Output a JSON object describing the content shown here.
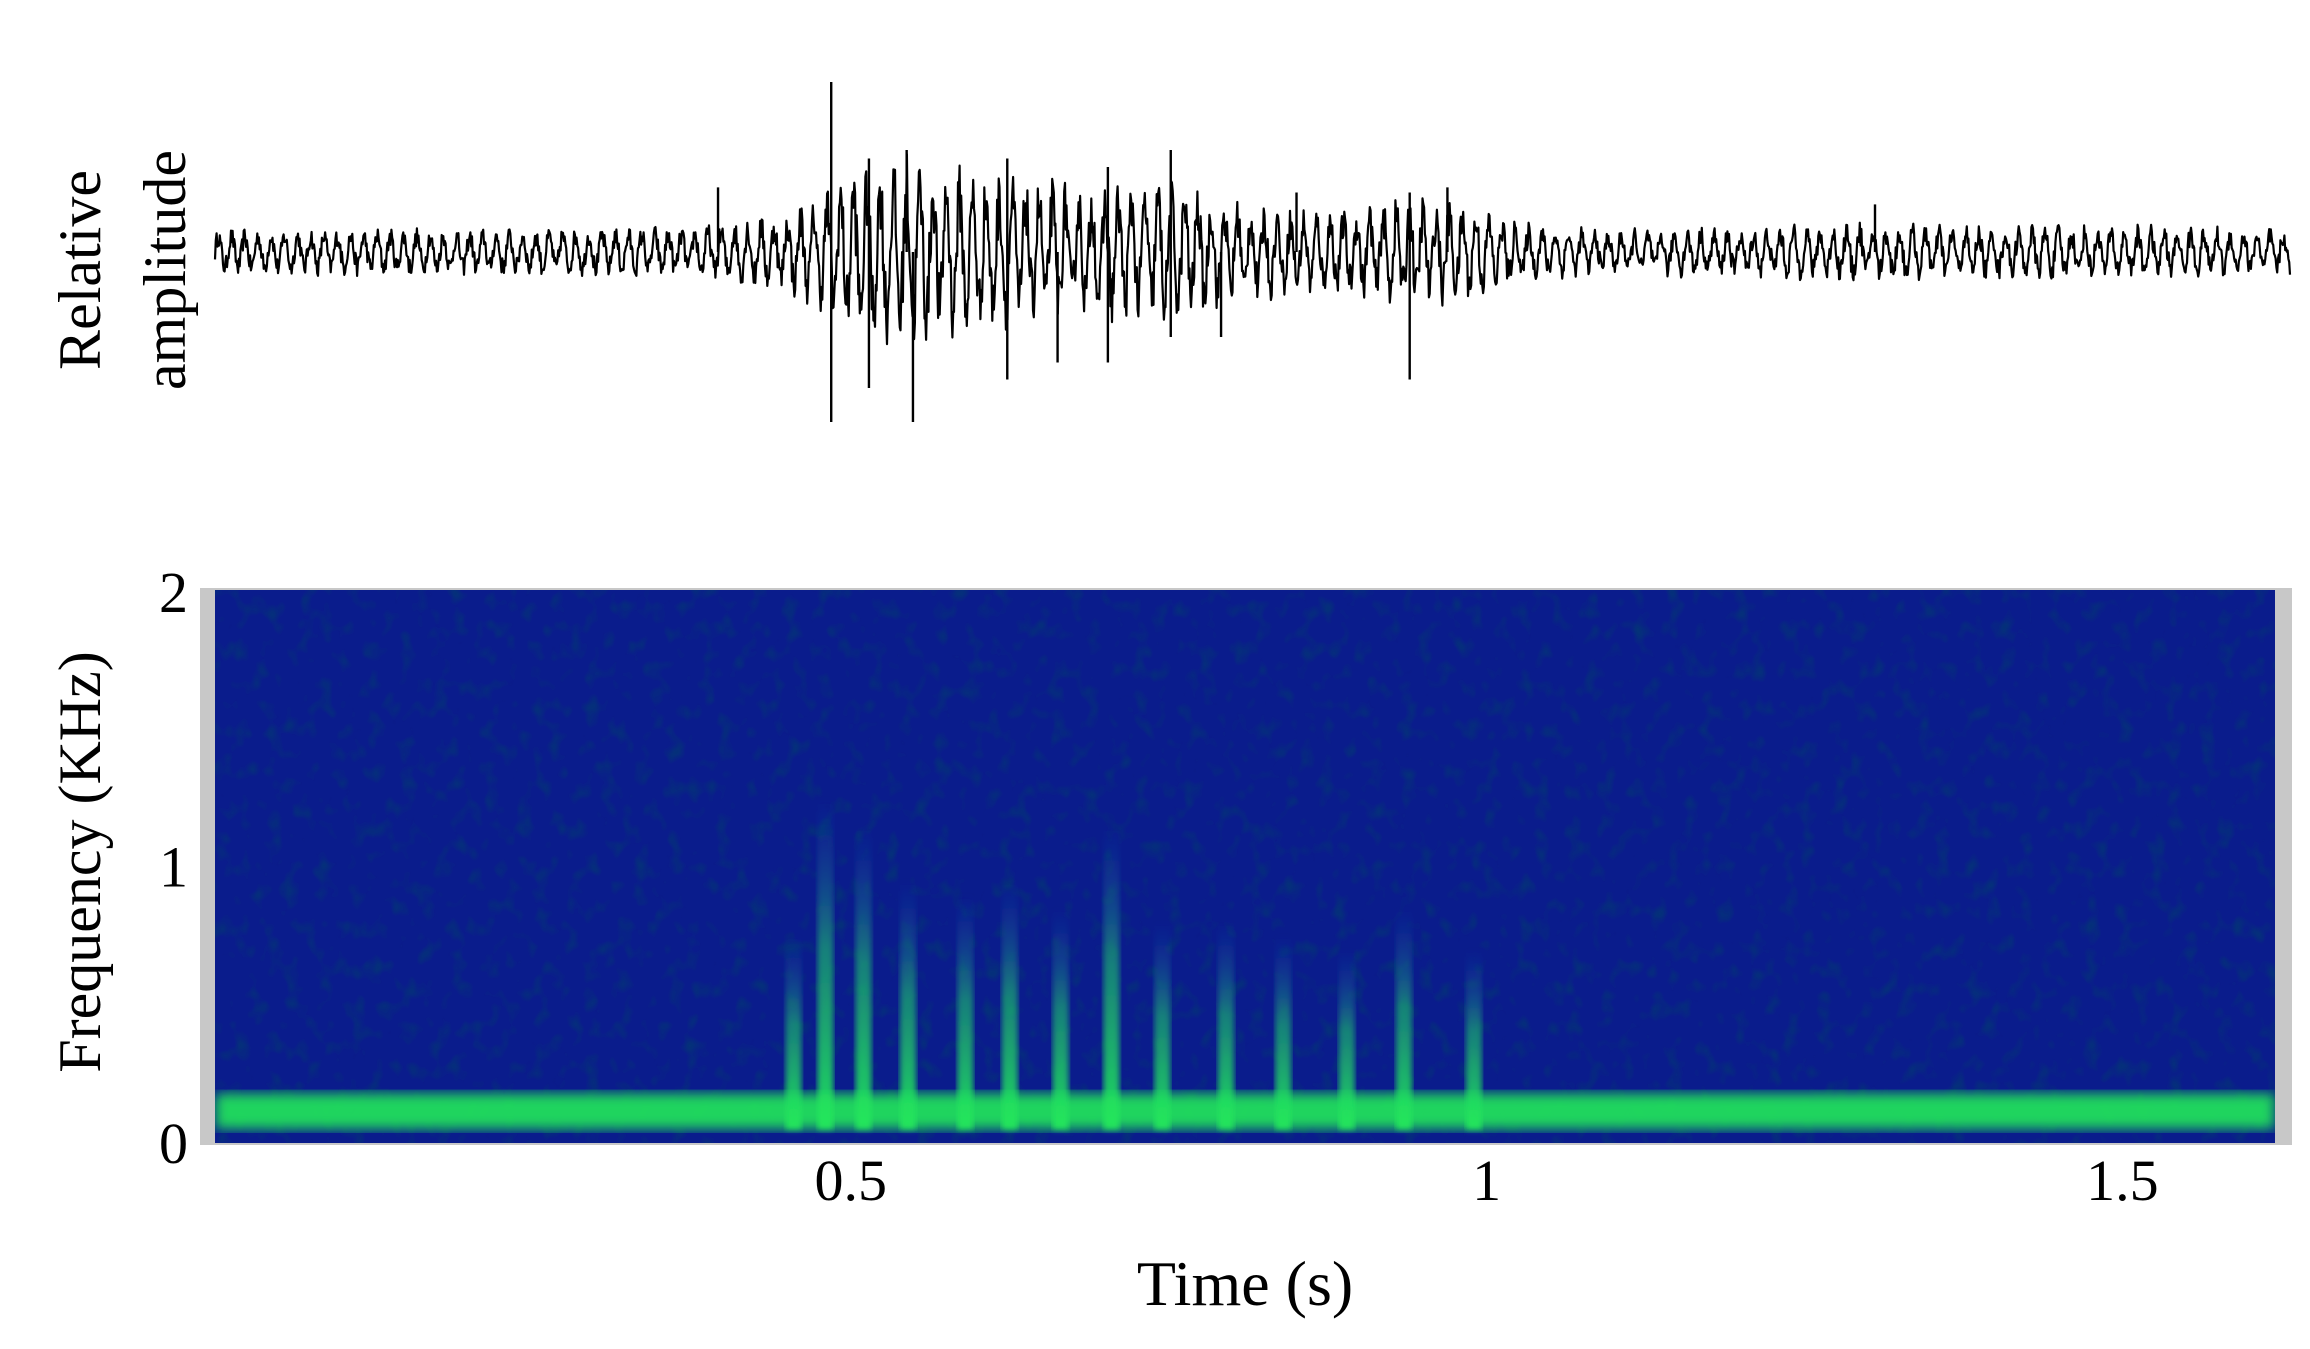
{
  "chart_data": [
    {
      "type": "line",
      "panel": "waveform",
      "ylabel_line1": "Relative",
      "ylabel_line2": "amplitude",
      "xlim": [
        0.0,
        1.65
      ],
      "ylim": [
        -1,
        1
      ],
      "grid": false,
      "trace_color": "#000000",
      "envelope": {
        "t": [
          0.0,
          0.2,
          0.38,
          0.45,
          0.48,
          0.5,
          0.55,
          0.6,
          0.65,
          0.7,
          0.75,
          0.8,
          0.85,
          0.9,
          0.95,
          1.0,
          1.05,
          1.1,
          1.2,
          1.3,
          1.4,
          1.5,
          1.65
        ],
        "amp": [
          0.12,
          0.12,
          0.13,
          0.2,
          0.28,
          0.42,
          0.5,
          0.42,
          0.38,
          0.34,
          0.38,
          0.3,
          0.22,
          0.22,
          0.3,
          0.24,
          0.14,
          0.12,
          0.13,
          0.15,
          0.14,
          0.14,
          0.12
        ]
      },
      "spikes": [
        {
          "t": 0.4,
          "amp": 0.38
        },
        {
          "t": 0.49,
          "amp": 1.0
        },
        {
          "t": 0.49,
          "amp": -1.0
        },
        {
          "t": 0.52,
          "amp": 0.55
        },
        {
          "t": 0.52,
          "amp": -0.8
        },
        {
          "t": 0.55,
          "amp": 0.6
        },
        {
          "t": 0.555,
          "amp": -1.0
        },
        {
          "t": 0.63,
          "amp": 0.55
        },
        {
          "t": 0.63,
          "amp": -0.75
        },
        {
          "t": 0.67,
          "amp": -0.65
        },
        {
          "t": 0.71,
          "amp": 0.5
        },
        {
          "t": 0.71,
          "amp": -0.65
        },
        {
          "t": 0.76,
          "amp": 0.6
        },
        {
          "t": 0.76,
          "amp": -0.5
        },
        {
          "t": 0.8,
          "amp": -0.5
        },
        {
          "t": 0.86,
          "amp": 0.35
        },
        {
          "t": 0.95,
          "amp": 0.35
        },
        {
          "t": 0.95,
          "amp": -0.75
        },
        {
          "t": 0.98,
          "amp": 0.38
        },
        {
          "t": 1.32,
          "amp": 0.28
        }
      ]
    },
    {
      "type": "heatmap",
      "panel": "spectrogram",
      "xlabel": "Time (s)",
      "ylabel": "Frequency (KHz)",
      "xlim": [
        0.0,
        1.62
      ],
      "ylim": [
        0,
        2
      ],
      "xticks": [
        "0.5",
        "1",
        "1.5"
      ],
      "xtick_values": [
        0.5,
        1.0,
        1.5
      ],
      "yticks": [
        "0",
        "1",
        "2"
      ],
      "ytick_values": [
        0,
        1,
        2
      ],
      "background_color": "#0a1c8c",
      "band_color": "#22e85a",
      "fundamental_band_khz": [
        0.05,
        0.18
      ],
      "harmonic_pulses": [
        {
          "t": 0.455,
          "top_khz": 0.75
        },
        {
          "t": 0.48,
          "top_khz": 1.25
        },
        {
          "t": 0.51,
          "top_khz": 1.15
        },
        {
          "t": 0.545,
          "top_khz": 0.95
        },
        {
          "t": 0.59,
          "top_khz": 0.9
        },
        {
          "t": 0.625,
          "top_khz": 0.95
        },
        {
          "t": 0.665,
          "top_khz": 0.85
        },
        {
          "t": 0.705,
          "top_khz": 1.15
        },
        {
          "t": 0.745,
          "top_khz": 0.8
        },
        {
          "t": 0.795,
          "top_khz": 0.8
        },
        {
          "t": 0.84,
          "top_khz": 0.75
        },
        {
          "t": 0.89,
          "top_khz": 0.7
        },
        {
          "t": 0.935,
          "top_khz": 0.85
        },
        {
          "t": 0.99,
          "top_khz": 0.7
        }
      ],
      "colormap": [
        "#000a3c",
        "#0a1c8c",
        "#1e50b4",
        "#22e85a"
      ]
    }
  ]
}
